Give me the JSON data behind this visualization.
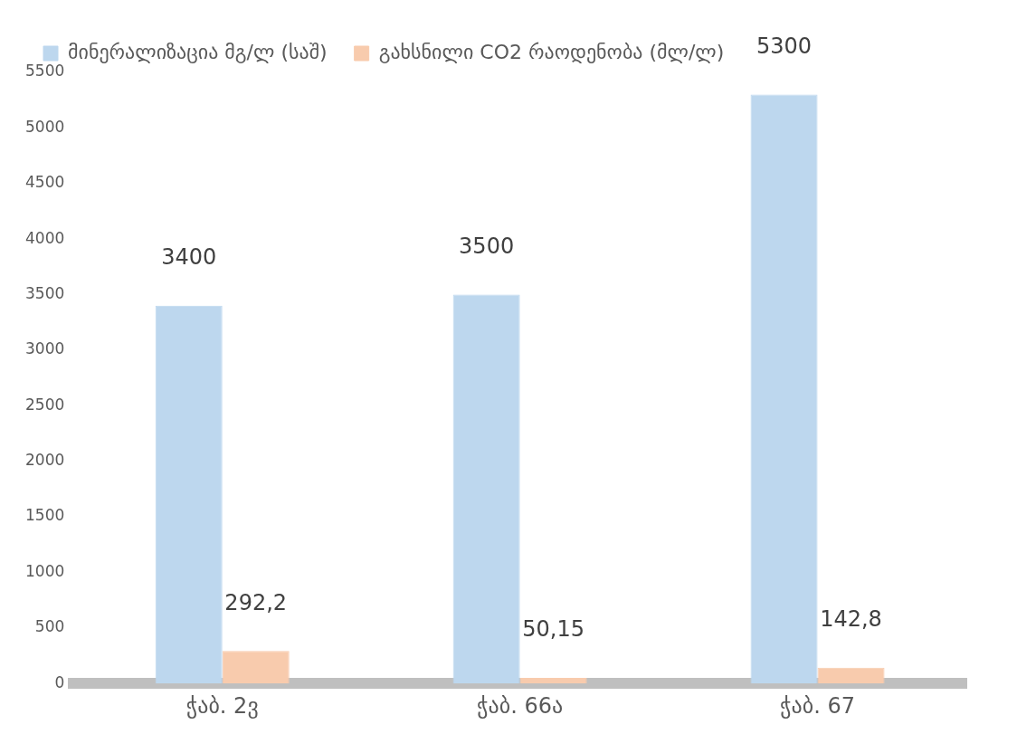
{
  "chart_data": {
    "type": "bar",
    "categories": [
      "ჭაბ. 2ვ",
      "ჭაბ. 66ა",
      "ჭაბ. 67"
    ],
    "series": [
      {
        "name": "მინერალიზაცია მგ/ლ (საშ)",
        "color": "#bdd7ee",
        "values": [
          3400,
          3500,
          5300
        ],
        "value_labels": [
          "3400",
          "3500",
          "5300"
        ]
      },
      {
        "name": "გახსნილი CO2 რაოდენობა (მლ/ლ)",
        "color": "#f8cbad",
        "values": [
          292.2,
          50.15,
          142.8
        ],
        "value_labels": [
          "292,2",
          "50,15",
          "142,8"
        ]
      }
    ],
    "ylim": [
      0,
      5500
    ],
    "yticks": [
      0,
      500,
      1000,
      1500,
      2000,
      2500,
      3000,
      3500,
      4000,
      4500,
      5000,
      5500
    ],
    "grid": false,
    "legend": "top"
  }
}
